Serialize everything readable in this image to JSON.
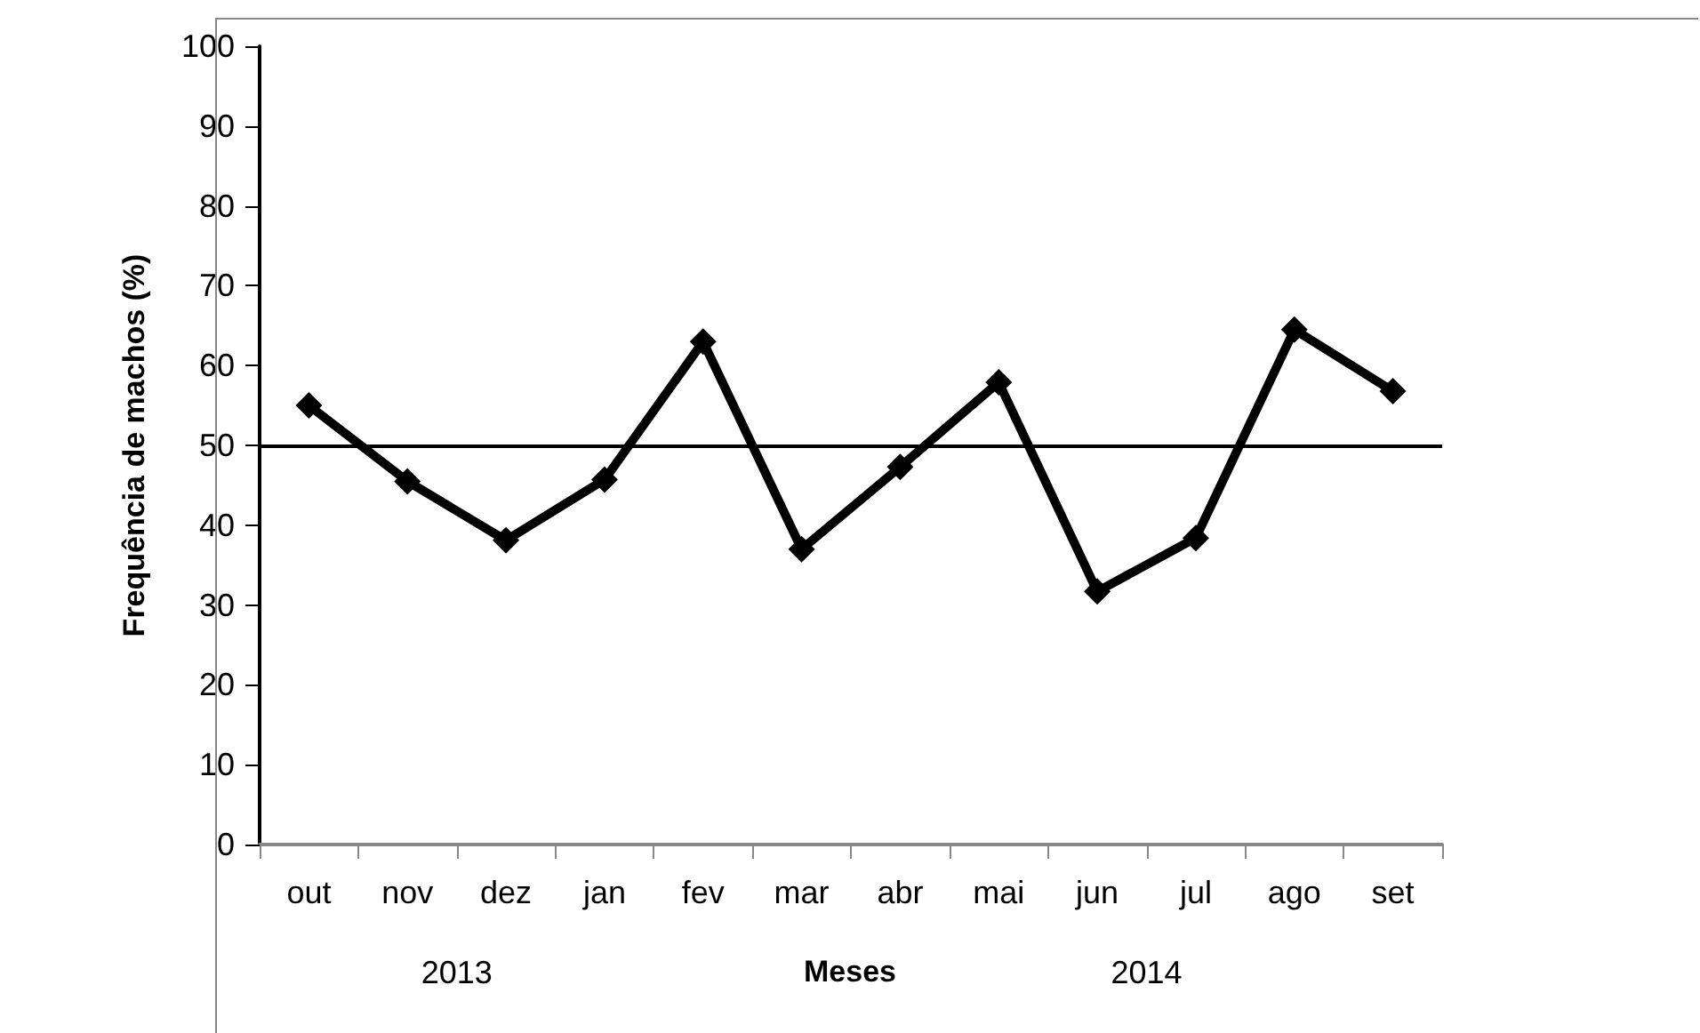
{
  "chart_data": {
    "type": "line",
    "xlabel": "Meses",
    "ylabel": "Frequência de machos (%)",
    "categories": [
      "out",
      "nov",
      "dez",
      "jan",
      "fev",
      "mar",
      "abr",
      "mai",
      "jun",
      "jul",
      "ago",
      "set"
    ],
    "series": [
      {
        "color": "#000000",
        "values": [
          55.0,
          45.5,
          38.1,
          45.7,
          63.0,
          37.0,
          47.3,
          57.9,
          31.7,
          38.4,
          64.5,
          56.8
        ]
      }
    ],
    "ylim": [
      0,
      100
    ],
    "yticks": [
      0,
      10,
      20,
      30,
      40,
      50,
      60,
      70,
      80,
      90,
      100
    ],
    "ref_lines": [
      {
        "axis": "y",
        "value": 50,
        "color": "#000000"
      }
    ],
    "annotations": [
      "2013",
      "2014"
    ],
    "marker": "diamond",
    "line_style": "solid",
    "grid": false
  }
}
